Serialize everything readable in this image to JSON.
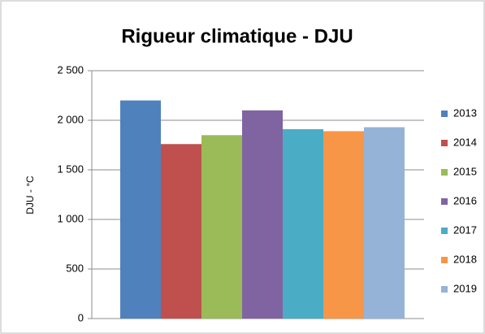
{
  "chart_data": {
    "type": "bar",
    "title": "Rigueur climatique - DJU",
    "y_label": "DJU - °C",
    "series": [
      {
        "name": "2013",
        "color": "#4f81bd",
        "values": [
          2200
        ]
      },
      {
        "name": "2014",
        "color": "#c0504d",
        "values": [
          1760
        ]
      },
      {
        "name": "2015",
        "color": "#9bbb59",
        "values": [
          1850
        ]
      },
      {
        "name": "2016",
        "color": "#8064a2",
        "values": [
          2100
        ]
      },
      {
        "name": "2017",
        "color": "#4bacc6",
        "values": [
          1910
        ]
      },
      {
        "name": "2018",
        "color": "#f79646",
        "values": [
          1890
        ]
      },
      {
        "name": "2019",
        "color": "#95b3d7",
        "values": [
          1930
        ]
      }
    ],
    "ylim": [
      0,
      2500
    ],
    "yticks": [
      0,
      500,
      {
        "value": 1000,
        "label": "1 000"
      },
      {
        "value": 1500,
        "label": "1 500"
      },
      {
        "value": 2000,
        "label": "2 000"
      },
      {
        "value": 2500,
        "label": "2 500"
      }
    ],
    "grid": true,
    "legend": "right"
  }
}
